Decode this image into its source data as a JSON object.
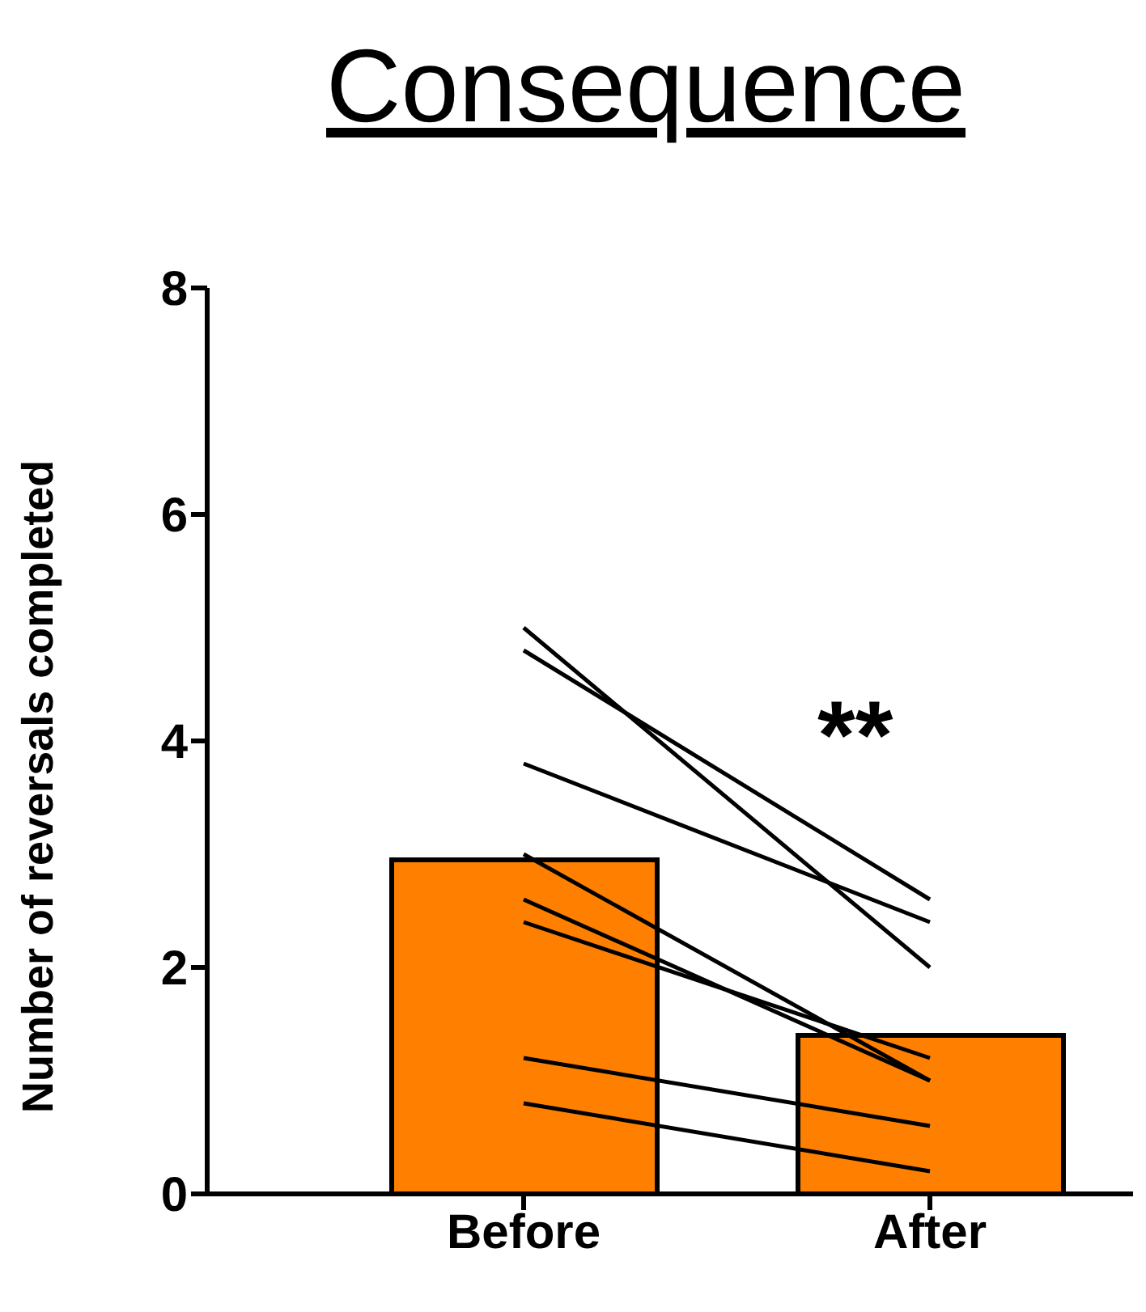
{
  "chart_data": {
    "type": "bar",
    "title": "Consequence",
    "ylabel": "Number of reversals completed",
    "categories": [
      "Before",
      "After"
    ],
    "values": [
      2.95,
      1.4
    ],
    "colors": [
      "#ff8000",
      "#ff8000"
    ],
    "series": [
      {
        "type": "line",
        "color": "#000000",
        "values": [
          5.0,
          2.0
        ]
      },
      {
        "type": "line",
        "color": "#000000",
        "values": [
          4.8,
          2.6
        ]
      },
      {
        "type": "line",
        "color": "#000000",
        "values": [
          3.8,
          2.4
        ]
      },
      {
        "type": "line",
        "color": "#000000",
        "values": [
          3.0,
          1.0
        ]
      },
      {
        "type": "line",
        "color": "#000000",
        "values": [
          2.6,
          1.0
        ]
      },
      {
        "type": "line",
        "color": "#000000",
        "values": [
          2.4,
          1.2
        ]
      },
      {
        "type": "line",
        "color": "#000000",
        "values": [
          1.2,
          0.6
        ]
      },
      {
        "type": "line",
        "color": "#000000",
        "values": [
          0.8,
          0.2
        ]
      }
    ],
    "ylim": [
      0,
      8
    ],
    "yticks": [
      0,
      2,
      4,
      6,
      8
    ],
    "grid": false,
    "marker": "none",
    "annotations": [
      "**"
    ]
  }
}
